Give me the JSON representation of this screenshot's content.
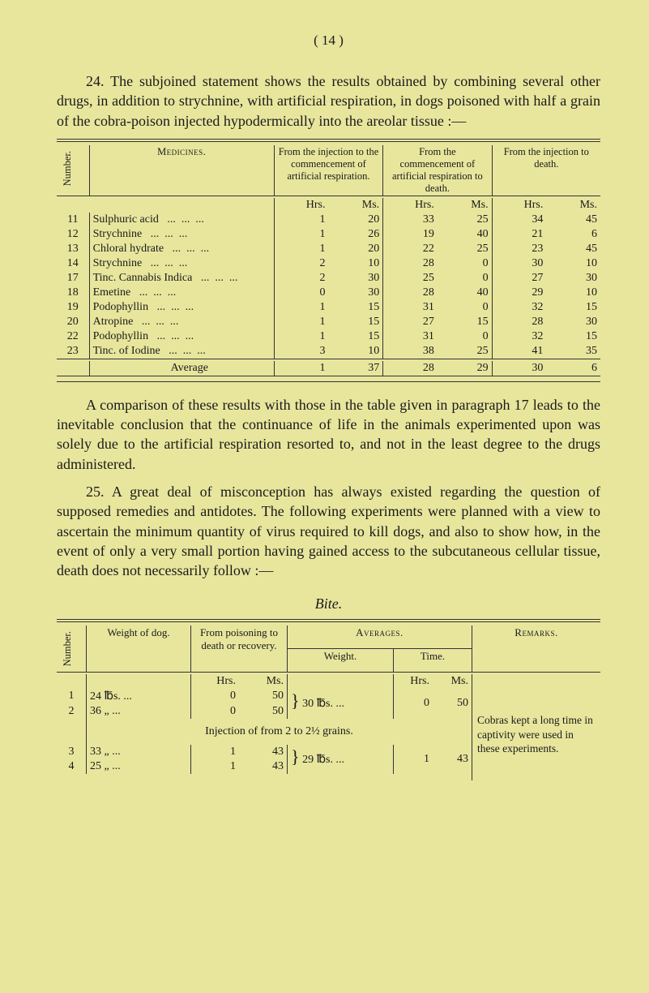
{
  "page_header": "(  14  )",
  "para1_lead": "24.",
  "para1": "The subjoined statement shows the results obtained by combining several other drugs, in addition to strychnine, with artificial respiration, in dogs poisoned with half a grain of the cobra-poison injected hypodermically into the areolar tissue :—",
  "table1": {
    "col_number": "Number.",
    "col_medicines": "Medicines.",
    "col_injection": "From the injection to the commencement of artificial respiration.",
    "col_commence": "From the commencement of artificial respiration to death.",
    "col_injec2": "From the injection to death.",
    "unit_hrs": "Hrs.",
    "unit_ms": "Ms.",
    "rows": [
      {
        "n": "11",
        "med": "Sulphuric acid",
        "a1": "1",
        "a2": "20",
        "b1": "33",
        "b2": "25",
        "c1": "34",
        "c2": "45"
      },
      {
        "n": "12",
        "med": "Strychnine",
        "a1": "1",
        "a2": "26",
        "b1": "19",
        "b2": "40",
        "c1": "21",
        "c2": "6"
      },
      {
        "n": "13",
        "med": "Chloral hydrate",
        "a1": "1",
        "a2": "20",
        "b1": "22",
        "b2": "25",
        "c1": "23",
        "c2": "45"
      },
      {
        "n": "14",
        "med": "Strychnine",
        "a1": "2",
        "a2": "10",
        "b1": "28",
        "b2": "0",
        "c1": "30",
        "c2": "10"
      },
      {
        "n": "17",
        "med": "Tinc. Cannabis Indica",
        "a1": "2",
        "a2": "30",
        "b1": "25",
        "b2": "0",
        "c1": "27",
        "c2": "30"
      },
      {
        "n": "18",
        "med": "Emetine",
        "a1": "0",
        "a2": "30",
        "b1": "28",
        "b2": "40",
        "c1": "29",
        "c2": "10"
      },
      {
        "n": "19",
        "med": "Podophyllin",
        "a1": "1",
        "a2": "15",
        "b1": "31",
        "b2": "0",
        "c1": "32",
        "c2": "15"
      },
      {
        "n": "20",
        "med": "Atropine",
        "a1": "1",
        "a2": "15",
        "b1": "27",
        "b2": "15",
        "c1": "28",
        "c2": "30"
      },
      {
        "n": "22",
        "med": "Podophyllin",
        "a1": "1",
        "a2": "15",
        "b1": "31",
        "b2": "0",
        "c1": "32",
        "c2": "15"
      },
      {
        "n": "23",
        "med": "Tinc. of Iodine",
        "a1": "3",
        "a2": "10",
        "b1": "38",
        "b2": "25",
        "c1": "41",
        "c2": "35"
      }
    ],
    "average_label": "Average",
    "avg": {
      "a1": "1",
      "a2": "37",
      "b1": "28",
      "b2": "29",
      "c1": "30",
      "c2": "6"
    }
  },
  "para2": "A comparison of these results with those in the table given in paragraph 17 leads to the inevitable conclusion that the continuance of life in the animals experimented upon was solely due to the artificial respiration resorted to, and not in the least degree to the drugs administered.",
  "para3_lead": "25.",
  "para3": "A great deal of misconception has always existed regarding the question of supposed remedies and antidotes. The following experiments were planned with a view to ascertain the minimum quantity of virus required to kill dogs, and also to show how, in the event of only a very small portion having gained access to the subcutaneous cellular tissue, death does not necessarily follow :—",
  "bite_title": "Bite.",
  "table2": {
    "col_number": "Number.",
    "col_weight_dog": "Weight of dog.",
    "col_from_poison": "From poisoning to death or recovery.",
    "col_averages": "Averages.",
    "col_avg_weight": "Weight.",
    "col_avg_time": "Time.",
    "col_remarks": "Remarks.",
    "unit_hrs": "Hrs.",
    "unit_ms": "Ms.",
    "rows_a": [
      {
        "n": "1",
        "w": "24  ℔s. ...",
        "h": "0",
        "m": "50"
      },
      {
        "n": "2",
        "w": "36  „  ...",
        "h": "0",
        "m": "50"
      }
    ],
    "avg_a_weight": "30 ℔s.",
    "avg_a_time_h": "0",
    "avg_a_time_m": "50",
    "injection_note": "Injection of from 2 to 2½ grains.",
    "rows_b": [
      {
        "n": "3",
        "w": "33  „  ...",
        "h": "1",
        "m": "43"
      },
      {
        "n": "4",
        "w": "25  „  ...",
        "h": "1",
        "m": "43"
      }
    ],
    "avg_b_weight": "29 ℔s.",
    "avg_b_time_h": "1",
    "avg_b_time_m": "43",
    "remarks_text": "Cobras kept a long time in captivity were used in these experiments."
  }
}
